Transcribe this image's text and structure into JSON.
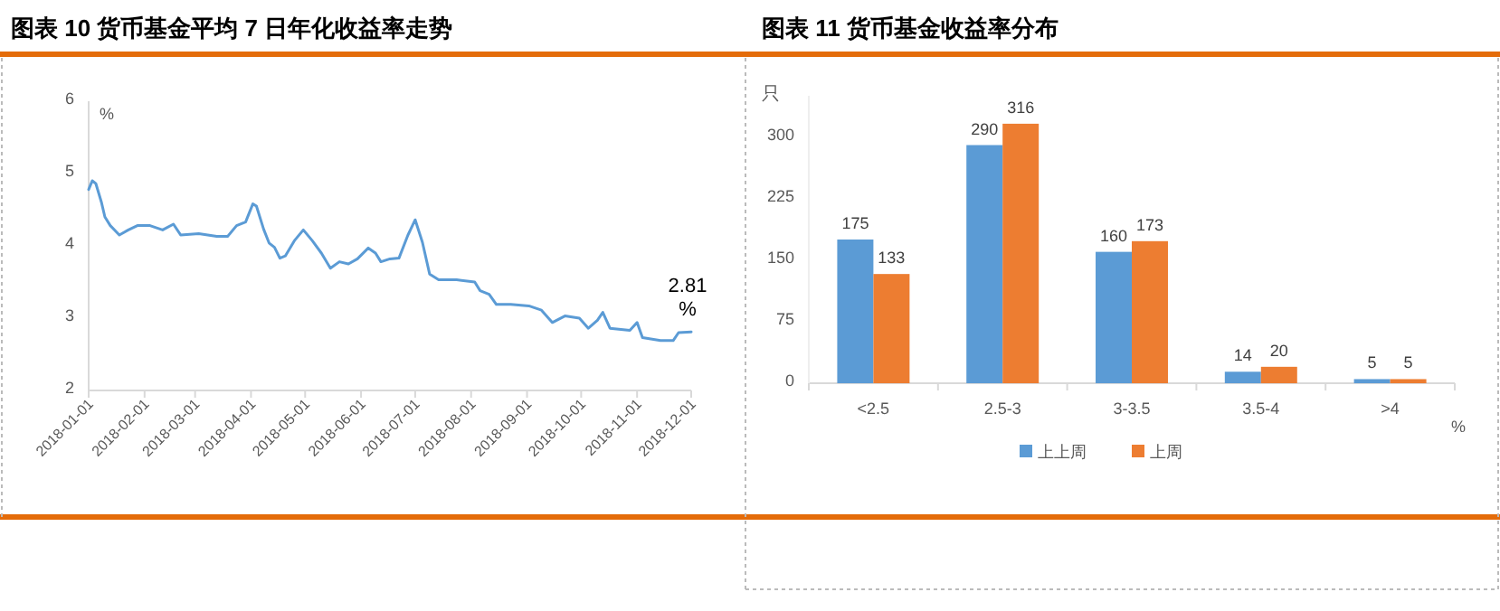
{
  "chart_data": [
    {
      "type": "line",
      "title": "图表 10  货币基金平均 7 日年化收益率走势",
      "ylabel": "%",
      "x": [
        "2018-01-01",
        "2018-01-03",
        "2018-01-05",
        "2018-01-08",
        "2018-01-10",
        "2018-01-13",
        "2018-01-18",
        "2018-01-23",
        "2018-01-28",
        "2018-02-04",
        "2018-02-11",
        "2018-02-17",
        "2018-02-21",
        "2018-03-03",
        "2018-03-13",
        "2018-03-19",
        "2018-03-24",
        "2018-03-29",
        "2018-04-02",
        "2018-04-04",
        "2018-04-08",
        "2018-04-11",
        "2018-04-14",
        "2018-04-17",
        "2018-04-20",
        "2018-04-25",
        "2018-04-30",
        "2018-05-05",
        "2018-05-10",
        "2018-05-15",
        "2018-05-20",
        "2018-05-25",
        "2018-05-30",
        "2018-06-05",
        "2018-06-09",
        "2018-06-12",
        "2018-06-17",
        "2018-06-22",
        "2018-06-27",
        "2018-07-01",
        "2018-07-05",
        "2018-07-09",
        "2018-07-14",
        "2018-07-24",
        "2018-08-03",
        "2018-08-06",
        "2018-08-11",
        "2018-08-15",
        "2018-08-23",
        "2018-09-02",
        "2018-09-09",
        "2018-09-15",
        "2018-09-22",
        "2018-09-30",
        "2018-10-05",
        "2018-10-10",
        "2018-10-13",
        "2018-10-17",
        "2018-10-28",
        "2018-11-01",
        "2018-11-04",
        "2018-11-14",
        "2018-11-21",
        "2018-11-24",
        "2018-12-01"
      ],
      "series": [
        {
          "color": "#5b9bd5",
          "values": [
            4.78,
            4.9,
            4.86,
            4.61,
            4.4,
            4.28,
            4.15,
            4.22,
            4.28,
            4.28,
            4.22,
            4.3,
            4.15,
            4.17,
            4.13,
            4.13,
            4.28,
            4.33,
            4.58,
            4.55,
            4.23,
            4.04,
            3.98,
            3.83,
            3.86,
            4.07,
            4.22,
            4.07,
            3.9,
            3.69,
            3.78,
            3.75,
            3.82,
            3.97,
            3.9,
            3.78,
            3.82,
            3.83,
            4.15,
            4.36,
            4.05,
            3.61,
            3.53,
            3.53,
            3.5,
            3.38,
            3.33,
            3.19,
            3.19,
            3.17,
            3.11,
            2.94,
            3.03,
            3.0,
            2.86,
            2.97,
            3.08,
            2.86,
            2.83,
            2.94,
            2.73,
            2.69,
            2.69,
            2.8,
            2.81
          ]
        }
      ],
      "xlim": [
        "2018-01-01",
        "2018-12-01"
      ],
      "xticks": [
        "2018-01-01",
        "2018-02-01",
        "2018-03-01",
        "2018-04-01",
        "2018-05-01",
        "2018-06-01",
        "2018-07-01",
        "2018-08-01",
        "2018-09-01",
        "2018-10-01",
        "2018-11-01",
        "2018-12-01"
      ],
      "ylim": [
        2,
        6
      ],
      "yticks": [
        2,
        3,
        4,
        5,
        6
      ],
      "grid": false,
      "legend": false,
      "marker": "none",
      "line_style": "solid",
      "annotations": [
        {
          "text": "2.81%",
          "x": "2018-12-01",
          "y": 2.81
        }
      ]
    },
    {
      "type": "bar",
      "title": "图表 11  货币基金收益率分布",
      "ylabel": "只",
      "xlabel": "%",
      "categories": [
        "<2.5",
        "2.5-3",
        "3-3.5",
        "3.5-4",
        ">4"
      ],
      "series": [
        {
          "name": "上上周",
          "color": "#5b9bd5",
          "values": [
            175,
            290,
            160,
            14,
            5
          ]
        },
        {
          "name": "上周",
          "color": "#ed7d31",
          "values": [
            133,
            316,
            173,
            20,
            5
          ]
        }
      ],
      "ylim": [
        0,
        350
      ],
      "yticks": [
        0,
        75,
        150,
        225,
        300
      ],
      "grid": false,
      "legend": "bottom",
      "data_labels": true
    }
  ]
}
